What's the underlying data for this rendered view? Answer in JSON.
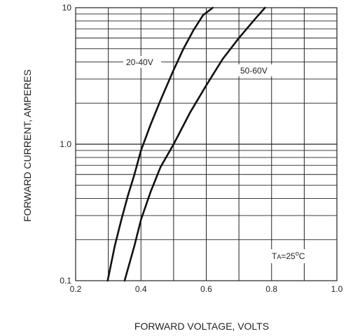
{
  "chart_data": {
    "type": "line",
    "title": "",
    "xlabel": "FORWARD VOLTAGE, VOLTS",
    "ylabel": "FORWARD CURRENT, AMPERES",
    "xlim": [
      0.2,
      1.0
    ],
    "ylim": [
      0.1,
      10
    ],
    "y_scale": "log",
    "grid": true,
    "x_ticks": [
      "0.2",
      "0.4",
      "0.6",
      "0.8",
      "1.0"
    ],
    "y_ticks": [
      "0.1",
      "1.0",
      "10"
    ],
    "annotations": [
      {
        "text_main": "T",
        "text_sub": "A",
        "text_tail": "=25",
        "text_sup": "o",
        "text_unit": "C"
      }
    ],
    "series": [
      {
        "name": "20-40V",
        "x": [
          0.298,
          0.32,
          0.34,
          0.36,
          0.38,
          0.4,
          0.43,
          0.46,
          0.5,
          0.53,
          0.56,
          0.59,
          0.62
        ],
        "y": [
          0.1,
          0.18,
          0.28,
          0.42,
          0.6,
          0.9,
          1.4,
          2.1,
          3.5,
          5.0,
          6.8,
          8.8,
          10.0
        ]
      },
      {
        "name": "50-60V",
        "x": [
          0.35,
          0.38,
          0.4,
          0.43,
          0.46,
          0.5,
          0.55,
          0.6,
          0.65,
          0.7,
          0.75,
          0.78
        ],
        "y": [
          0.1,
          0.18,
          0.28,
          0.45,
          0.68,
          1.0,
          1.7,
          2.7,
          4.2,
          6.0,
          8.3,
          10.0
        ]
      }
    ]
  }
}
